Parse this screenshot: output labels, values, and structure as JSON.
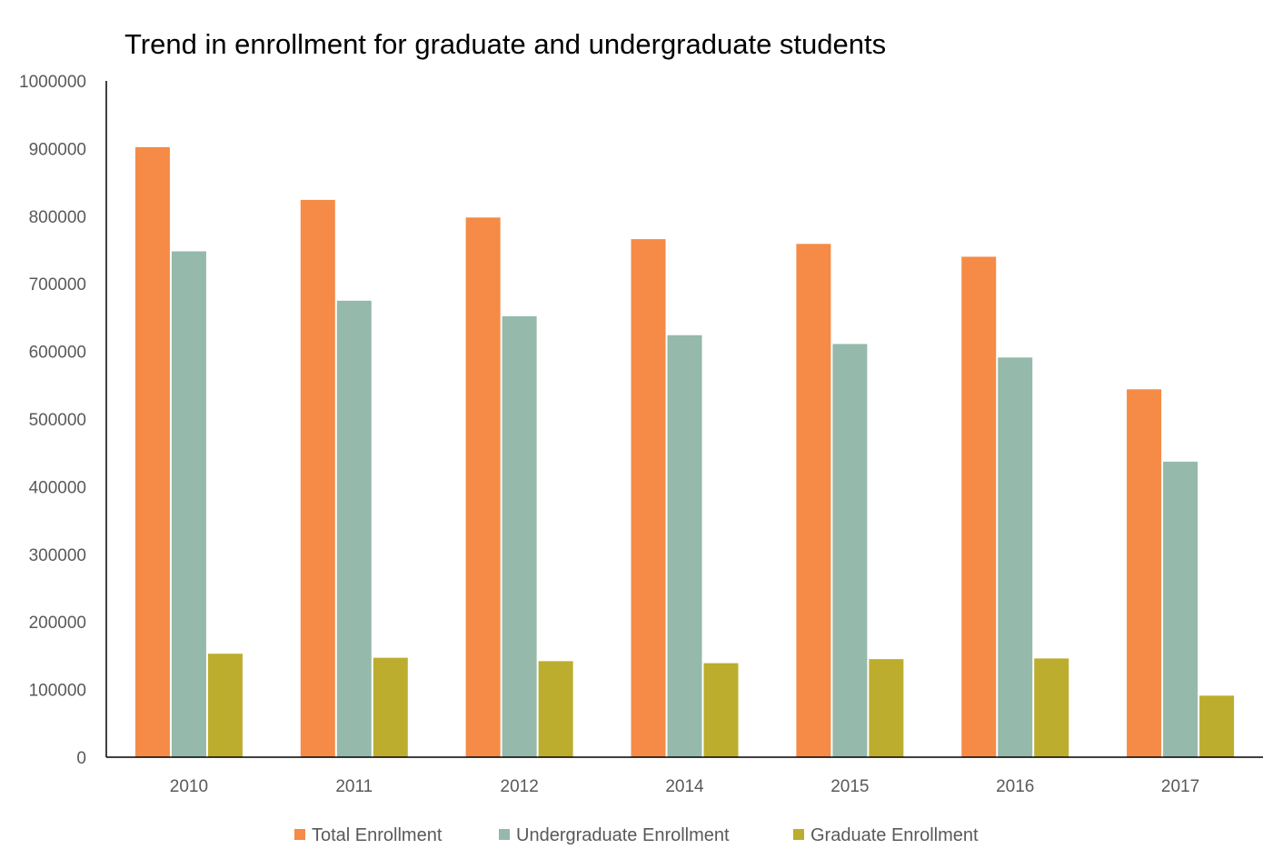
{
  "chart_data": {
    "type": "bar",
    "title": "Trend in enrollment for graduate and undergraduate students",
    "xlabel": "",
    "ylabel": "",
    "categories": [
      "2010",
      "2011",
      "2012",
      "2014",
      "2015",
      "2016",
      "2017"
    ],
    "ylim": [
      0,
      1000000
    ],
    "yticks": [
      "0",
      "100000",
      "200000",
      "300000",
      "400000",
      "500000",
      "600000",
      "700000",
      "800000",
      "900000",
      "1000000"
    ],
    "grid": false,
    "legend_position": "bottom",
    "series": [
      {
        "name": "Total Enrollment",
        "color": "#F58B46",
        "values": [
          902000,
          824000,
          798000,
          766000,
          759000,
          740000,
          544000
        ]
      },
      {
        "name": "Undergraduate Enrollment",
        "color": "#95B9AA",
        "values": [
          748000,
          675000,
          652000,
          624000,
          611000,
          591000,
          437000
        ]
      },
      {
        "name": "Graduate Enrollment",
        "color": "#BCAD2E",
        "values": [
          153000,
          147000,
          142000,
          139000,
          145000,
          146000,
          91000
        ]
      }
    ]
  }
}
